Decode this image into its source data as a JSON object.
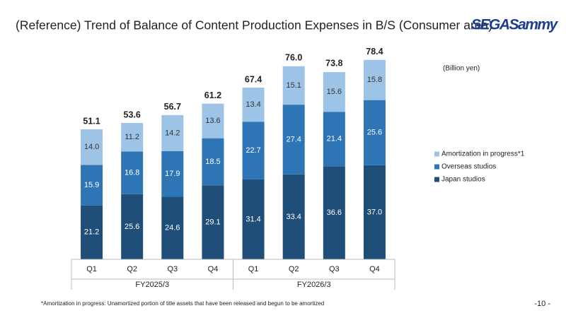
{
  "logo": "SEGASammy",
  "page_number": "-10 -",
  "chart_data": {
    "type": "stacked-bar",
    "title": "(Reference) Trend of Balance of Content Production Expenses in B/S (Consumer area)",
    "unit": "(Billion yen)",
    "footnote": "*Amortization in progress: Unamortized portion of title assets that have been released and begun to be amortized",
    "categories": [
      "Q1",
      "Q2",
      "Q3",
      "Q4",
      "Q1",
      "Q2",
      "Q3",
      "Q4"
    ],
    "groups": [
      "FY2025/3",
      "FY2026/3"
    ],
    "series": [
      {
        "name": "Japan studios",
        "color": "#1f4e79",
        "label_color": "#ffffff",
        "values": [
          21.2,
          25.6,
          24.6,
          29.1,
          31.4,
          33.4,
          36.6,
          37.0
        ],
        "value_labels": [
          "21.2",
          "25.6",
          "24.6",
          "29.1",
          "31.4",
          "33.4",
          "36.6",
          "37.0"
        ]
      },
      {
        "name": "Overseas studios",
        "color": "#2e75b6",
        "label_color": "#ffffff",
        "values": [
          15.9,
          16.8,
          17.9,
          18.5,
          22.7,
          27.4,
          21.4,
          25.6
        ],
        "value_labels": [
          "15.9",
          "16.8",
          "17.9",
          "18.5",
          "22.7",
          "27.4",
          "21.4",
          "25.6"
        ]
      },
      {
        "name": "Amortization in progress*1",
        "color": "#9dc3e6",
        "label_color": "#333333",
        "values": [
          14.0,
          11.2,
          14.2,
          13.6,
          13.4,
          15.1,
          15.6,
          15.8
        ],
        "value_labels": [
          "14.0",
          "11.2",
          "14.2",
          "13.6",
          "13.4",
          "15.1",
          "15.6",
          "15.8"
        ]
      }
    ],
    "totals": [
      51.1,
      53.6,
      56.7,
      61.2,
      67.4,
      76.0,
      73.8,
      78.4
    ],
    "total_labels": [
      "51.1",
      "53.6",
      "56.7",
      "61.2",
      "67.4",
      "76.0",
      "73.8",
      "78.4"
    ]
  }
}
